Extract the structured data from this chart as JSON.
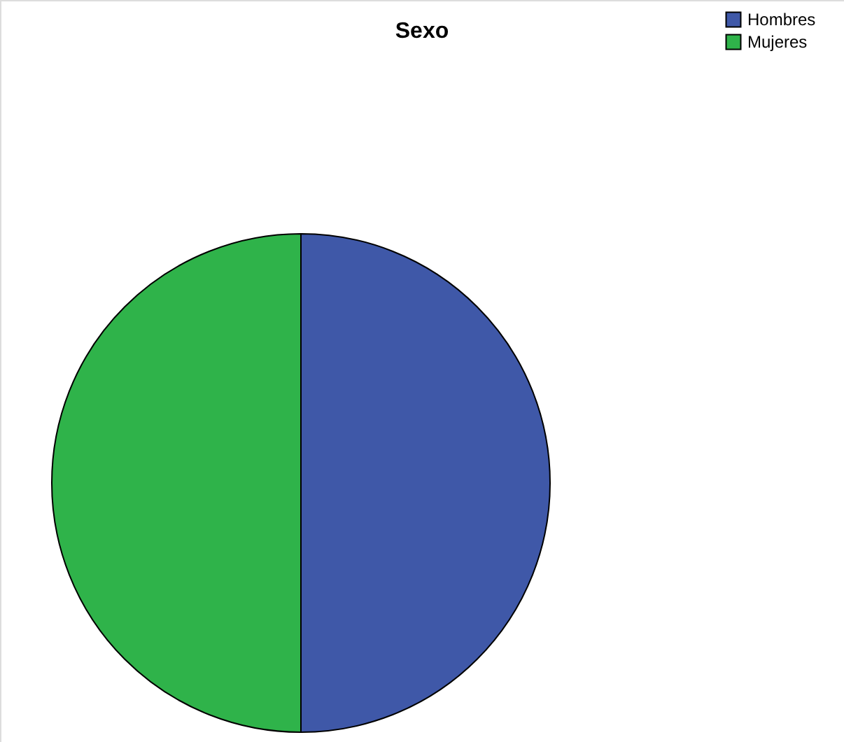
{
  "chart_data": {
    "type": "pie",
    "title": "Sexo",
    "categories": [
      "Hombres",
      "Mujeres"
    ],
    "values": [
      50,
      50
    ],
    "colors": [
      "#3f58a8",
      "#2fb34a"
    ],
    "legend": "top right"
  }
}
